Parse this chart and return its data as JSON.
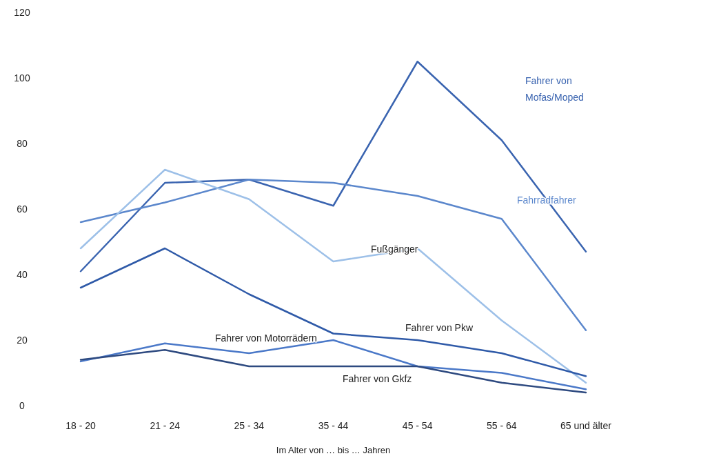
{
  "chart_data": {
    "type": "line",
    "xlabel": "Im Alter von … bis … Jahren",
    "categories": [
      "18 - 20",
      "21 - 24",
      "25 - 34",
      "35 - 44",
      "45 - 54",
      "55 - 64",
      "65 und älter"
    ],
    "ylim": [
      0,
      120
    ],
    "yticks": [
      0,
      20,
      40,
      60,
      80,
      100,
      120
    ],
    "grid": false,
    "legend": false,
    "marker": "none",
    "line_style": "solid",
    "series": [
      {
        "name": "Fahrer von Mofas/Moped",
        "color": "#3a64b0",
        "values": [
          41,
          68,
          69,
          61,
          105,
          81,
          47
        ]
      },
      {
        "name": "Fahrradfahrer",
        "color": "#5b87cc",
        "values": [
          56,
          62,
          69,
          68,
          64,
          57,
          23
        ]
      },
      {
        "name": "Fußgänger",
        "color": "#9dc0e8",
        "values": [
          48,
          72,
          63,
          44,
          48,
          26,
          7
        ]
      },
      {
        "name": "Fahrer von Pkw",
        "color": "#2f5aa8",
        "values": [
          36,
          48,
          34,
          22,
          20,
          16,
          9
        ]
      },
      {
        "name": "Fahrer von Motorrädern",
        "color": "#4a78c8",
        "values": [
          13.5,
          19,
          16,
          20,
          12,
          10,
          5
        ]
      },
      {
        "name": "Fahrer von Gkfz",
        "color": "#2e4a80",
        "values": [
          14,
          17,
          12,
          12,
          12,
          7,
          4
        ]
      }
    ]
  }
}
